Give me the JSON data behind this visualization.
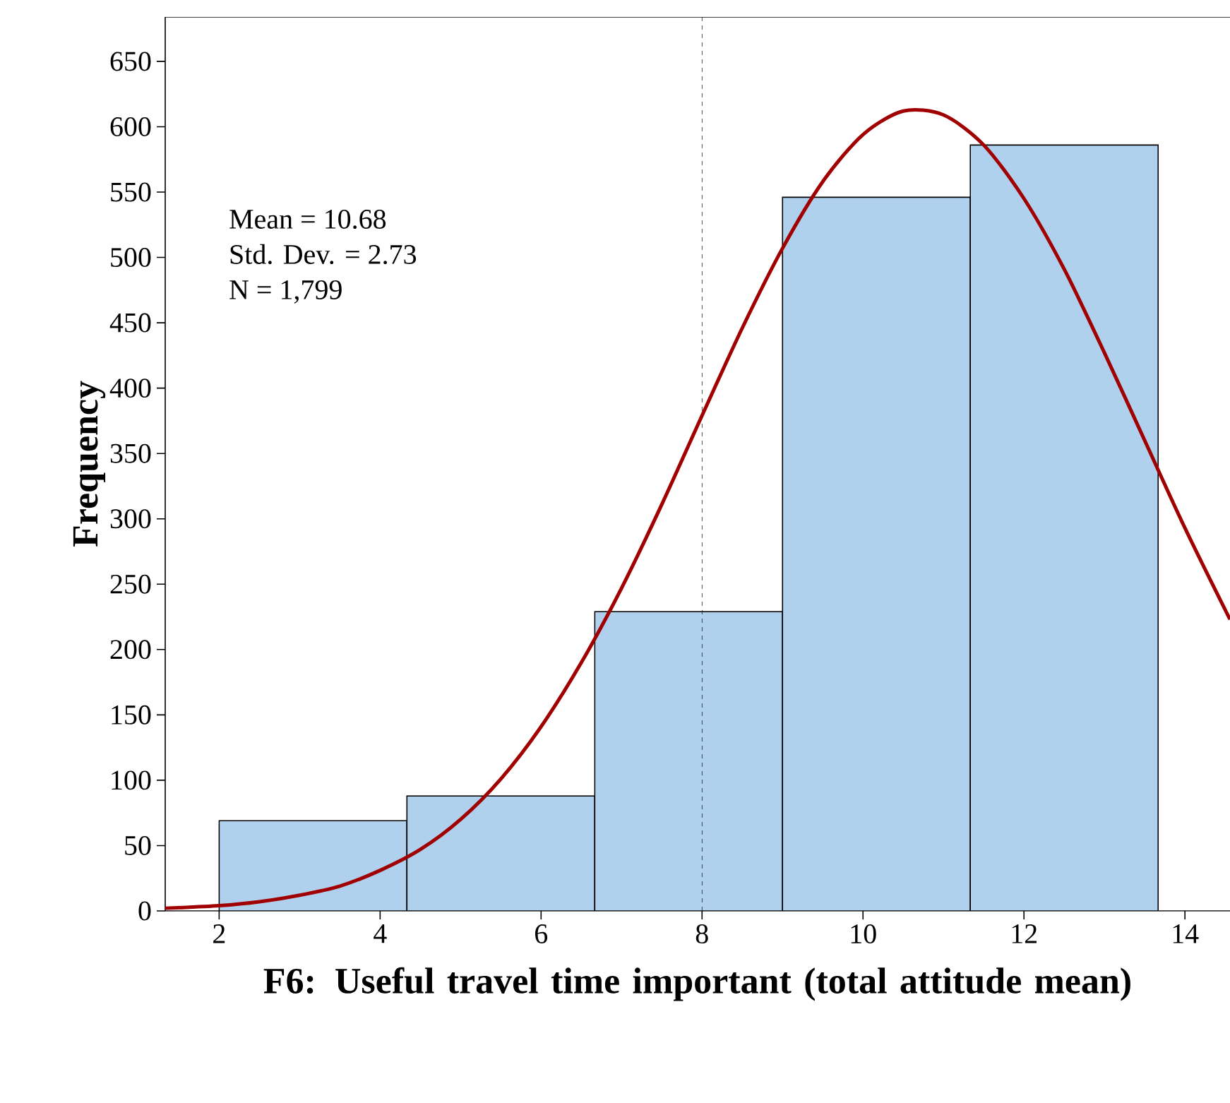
{
  "chart_data": {
    "type": "histogram",
    "xlabel": "F6: Useful travel time important (total attitude mean)",
    "ylabel": "Frequency",
    "bins": [
      2,
      4.333,
      6.667,
      9,
      11.333,
      13.667
    ],
    "values": [
      69,
      88,
      229,
      546,
      586
    ],
    "color": "#b0d1ee",
    "series": [
      {
        "type": "line",
        "color": "#a00000",
        "x": [
          1.33,
          2,
          2.5,
          3,
          3.5,
          4,
          4.5,
          5,
          5.5,
          6,
          6.5,
          7,
          7.5,
          8,
          8.5,
          9,
          9.5,
          10,
          10.5,
          11,
          11.5,
          12,
          12.5,
          13,
          13.5,
          14,
          14.56
        ],
        "values": [
          2,
          4,
          7,
          12,
          19,
          31,
          47,
          70,
          101,
          141,
          190,
          247,
          311,
          379,
          446,
          507,
          558,
          594,
          612,
          609,
          586,
          545,
          491,
          427,
          360,
          293,
          223
        ]
      }
    ],
    "ref_lines": [
      {
        "axis": "x",
        "value": 8,
        "line_style": "dashed"
      }
    ],
    "annotations": [
      "Mean = 10.68",
      "Std. Dev. = 2.73",
      "N = 1,799"
    ],
    "xlim": [
      1.33,
      14.56
    ],
    "ylim": [
      0,
      684
    ],
    "xticks": [
      2,
      4,
      6,
      8,
      10,
      12,
      14
    ],
    "yticks": [
      0,
      50,
      100,
      150,
      200,
      250,
      300,
      350,
      400,
      450,
      500,
      550,
      600,
      650
    ],
    "grid": false
  }
}
